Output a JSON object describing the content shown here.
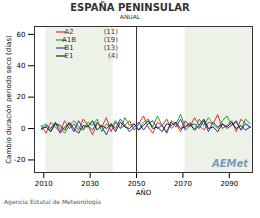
{
  "chart_data": {
    "type": "line",
    "title": "ESPAÑA PENINSULAR",
    "subtitle": "ANUAL",
    "x_label": "AÑO",
    "y_label": "Cambio duración periodo seco (días)",
    "credit": "Agencia Estatal de Meteorología",
    "watermark": "AEMet",
    "x": [
      2009,
      2011,
      2013,
      2015,
      2017,
      2019,
      2021,
      2023,
      2025,
      2027,
      2029,
      2031,
      2033,
      2035,
      2037,
      2039,
      2041,
      2043,
      2045,
      2047,
      2049,
      2051,
      2053,
      2055,
      2057,
      2059,
      2061,
      2063,
      2065,
      2067,
      2069,
      2071,
      2073,
      2075,
      2077,
      2079,
      2081,
      2083,
      2085,
      2087,
      2089,
      2091,
      2093,
      2095,
      2097,
      2099
    ],
    "series": [
      {
        "name": "A2",
        "count_label": "(11)",
        "color": "#e0302a",
        "values": [
          2,
          -3,
          4,
          1,
          -2,
          5,
          0,
          3,
          -1,
          6,
          2,
          -4,
          3,
          1,
          7,
          -2,
          4,
          0,
          2,
          5,
          -1,
          3,
          8,
          1,
          -3,
          4,
          2,
          6,
          0,
          3,
          -2,
          5,
          1,
          7,
          2,
          -1,
          4,
          3,
          9,
          0,
          2,
          5,
          -2,
          6,
          3,
          1
        ]
      },
      {
        "name": "A1B",
        "count_label": "(19)",
        "color": "#2ca02c",
        "values": [
          1,
          3,
          -2,
          4,
          0,
          -3,
          2,
          5,
          1,
          -1,
          4,
          2,
          6,
          -2,
          3,
          1,
          5,
          0,
          7,
          2,
          3,
          -1,
          4,
          6,
          1,
          8,
          2,
          -2,
          5,
          3,
          9,
          1,
          4,
          -1,
          6,
          2,
          7,
          3,
          0,
          5,
          8,
          2,
          4,
          -1,
          6,
          3
        ]
      },
      {
        "name": "B1",
        "count_label": "(13)",
        "color": "#2b3fc4",
        "values": [
          -1,
          2,
          0,
          4,
          -3,
          1,
          3,
          -2,
          5,
          0,
          2,
          -1,
          4,
          1,
          -4,
          3,
          0,
          6,
          2,
          -2,
          1,
          4,
          -1,
          3,
          5,
          0,
          2,
          -3,
          4,
          1,
          6,
          -1,
          2,
          3,
          0,
          5,
          -2,
          4,
          1,
          3,
          0,
          2,
          5,
          -1,
          3,
          1
        ]
      },
      {
        "name": "E1",
        "count_label": "(4)",
        "color": "#222222",
        "values": [
          0,
          1,
          -2,
          3,
          2,
          -1,
          4,
          0,
          -3,
          2,
          1,
          5,
          -1,
          2,
          0,
          3,
          -2,
          4,
          1,
          0,
          3,
          -1,
          2,
          5,
          0,
          1,
          -2,
          3,
          2,
          4,
          0,
          1,
          3,
          -1,
          2,
          6,
          0,
          1,
          -2,
          3,
          1,
          4,
          0,
          2,
          -1,
          1
        ]
      }
    ],
    "shaded_periods": [
      [
        2011,
        2040
      ],
      [
        2071,
        2100
      ]
    ],
    "vline": 2050,
    "xlim": [
      2006,
      2100
    ],
    "ylim": [
      -28,
      65
    ],
    "xticks": [
      2010,
      2030,
      2050,
      2070,
      2090
    ],
    "yticks": [
      -20,
      0,
      20,
      40,
      60
    ],
    "grid": false,
    "legend": "top-left"
  }
}
